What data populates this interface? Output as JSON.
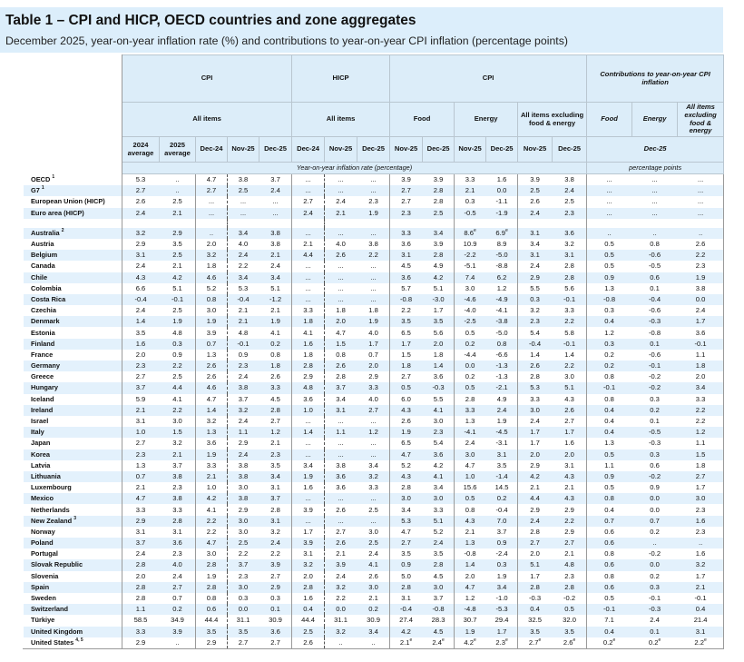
{
  "title": "Table 1 – CPI and HICP, OECD countries and zone aggregates",
  "subtitle": "December 2025, year-on-year inflation rate (%) and contributions to year-on-year CPI inflation (percentage points)",
  "header": {
    "group_cpi": "CPI",
    "group_hicp": "HICP",
    "group_cpi2": "CPI",
    "group_contrib": "Contributions to year-on-year CPI inflation",
    "all_items_cpi": "All items",
    "all_items_hicp": "All items",
    "food": "Food",
    "energy": "Energy",
    "excl": "All items excluding food & energy",
    "c_food": "Food",
    "c_energy": "Energy",
    "c_excl": "All items excluding food & energy",
    "periods": [
      "2024 average",
      "2025 average",
      "Dec-24",
      "Nov-25",
      "Dec-25",
      "Dec-24",
      "Nov-25",
      "Dec-25",
      "Nov-25",
      "Dec-25",
      "Nov-25",
      "Dec-25",
      "Nov-25",
      "Dec-25"
    ],
    "contrib_period": "Dec-25",
    "units_rate": "Year-on-year inflation rate (percentage)",
    "units_pp": "percentage points"
  },
  "aggregates": [
    {
      "name": "OECD",
      "note": "1",
      "values": [
        "5.3",
        "..",
        "4.7",
        "3.8",
        "3.7",
        "...",
        "...",
        "...",
        "3.9",
        "3.9",
        "3.3",
        "1.6",
        "3.9",
        "3.8",
        "...",
        "...",
        "..."
      ]
    },
    {
      "name": "G7",
      "note": "1",
      "values": [
        "2.7",
        "..",
        "2.7",
        "2.5",
        "2.4",
        "...",
        "...",
        "...",
        "2.7",
        "2.8",
        "2.1",
        "0.0",
        "2.5",
        "2.4",
        "...",
        "...",
        "..."
      ]
    },
    {
      "name": "European Union (HICP)",
      "note": "",
      "values": [
        "2.6",
        "2.5",
        "...",
        "...",
        "...",
        "2.7",
        "2.4",
        "2.3",
        "2.7",
        "2.8",
        "0.3",
        "-1.1",
        "2.6",
        "2.5",
        "...",
        "...",
        "..."
      ]
    },
    {
      "name": "Euro area (HICP)",
      "note": "",
      "values": [
        "2.4",
        "2.1",
        "...",
        "...",
        "...",
        "2.4",
        "2.1",
        "1.9",
        "2.3",
        "2.5",
        "-0.5",
        "-1.9",
        "2.4",
        "2.3",
        "...",
        "...",
        "..."
      ]
    }
  ],
  "countries": [
    {
      "name": "Australia",
      "note": "2",
      "values": [
        "3.2",
        "2.9",
        "..",
        "3.4",
        "3.8",
        "...",
        "...",
        "...",
        "3.3",
        "3.4",
        {
          "v": "8.6",
          "sup": "e"
        },
        {
          "v": "6.9",
          "sup": "e"
        },
        "3.1",
        "3.6",
        "..",
        "..",
        ".."
      ]
    },
    {
      "name": "Austria",
      "note": "",
      "values": [
        "2.9",
        "3.5",
        "2.0",
        "4.0",
        "3.8",
        "2.1",
        "4.0",
        "3.8",
        "3.6",
        "3.9",
        "10.9",
        "8.9",
        "3.4",
        "3.2",
        "0.5",
        "0.8",
        "2.6"
      ]
    },
    {
      "name": "Belgium",
      "note": "",
      "values": [
        "3.1",
        "2.5",
        "3.2",
        "2.4",
        "2.1",
        "4.4",
        "2.6",
        "2.2",
        "3.1",
        "2.8",
        "-2.2",
        "-5.0",
        "3.1",
        "3.1",
        "0.5",
        "-0.6",
        "2.2"
      ]
    },
    {
      "name": "Canada",
      "note": "",
      "values": [
        "2.4",
        "2.1",
        "1.8",
        "2.2",
        "2.4",
        "...",
        "...",
        "...",
        "4.5",
        "4.9",
        "-5.1",
        "-8.8",
        "2.4",
        "2.8",
        "0.5",
        "-0.5",
        "2.3"
      ]
    },
    {
      "name": "Chile",
      "note": "",
      "values": [
        "4.3",
        "4.2",
        "4.6",
        "3.4",
        "3.4",
        "...",
        "...",
        "...",
        "3.6",
        "4.2",
        "7.4",
        "6.2",
        "2.9",
        "2.8",
        "0.9",
        "0.6",
        "1.9"
      ]
    },
    {
      "name": "Colombia",
      "note": "",
      "values": [
        "6.6",
        "5.1",
        "5.2",
        "5.3",
        "5.1",
        "...",
        "...",
        "...",
        "5.7",
        "5.1",
        "3.0",
        "1.2",
        "5.5",
        "5.6",
        "1.3",
        "0.1",
        "3.8"
      ]
    },
    {
      "name": "Costa Rica",
      "note": "",
      "values": [
        "-0.4",
        "-0.1",
        "0.8",
        "-0.4",
        "-1.2",
        "...",
        "...",
        "...",
        "-0.8",
        "-3.0",
        "-4.6",
        "-4.9",
        "0.3",
        "-0.1",
        "-0.8",
        "-0.4",
        "0.0"
      ]
    },
    {
      "name": "Czechia",
      "note": "",
      "values": [
        "2.4",
        "2.5",
        "3.0",
        "2.1",
        "2.1",
        "3.3",
        "1.8",
        "1.8",
        "2.2",
        "1.7",
        "-4.0",
        "-4.1",
        "3.2",
        "3.3",
        "0.3",
        "-0.6",
        "2.4"
      ]
    },
    {
      "name": "Denmark",
      "note": "",
      "values": [
        "1.4",
        "1.9",
        "1.9",
        "2.1",
        "1.9",
        "1.8",
        "2.0",
        "1.9",
        "3.5",
        "3.5",
        "-2.5",
        "-3.8",
        "2.3",
        "2.2",
        "0.4",
        "-0.3",
        "1.7"
      ]
    },
    {
      "name": "Estonia",
      "note": "",
      "values": [
        "3.5",
        "4.8",
        "3.9",
        "4.8",
        "4.1",
        "4.1",
        "4.7",
        "4.0",
        "6.5",
        "5.6",
        "0.5",
        "-5.0",
        "5.4",
        "5.8",
        "1.2",
        "-0.8",
        "3.6"
      ]
    },
    {
      "name": "Finland",
      "note": "",
      "values": [
        "1.6",
        "0.3",
        "0.7",
        "-0.1",
        "0.2",
        "1.6",
        "1.5",
        "1.7",
        "1.7",
        "2.0",
        "0.2",
        "0.8",
        "-0.4",
        "-0.1",
        "0.3",
        "0.1",
        "-0.1"
      ]
    },
    {
      "name": "France",
      "note": "",
      "values": [
        "2.0",
        "0.9",
        "1.3",
        "0.9",
        "0.8",
        "1.8",
        "0.8",
        "0.7",
        "1.5",
        "1.8",
        "-4.4",
        "-6.6",
        "1.4",
        "1.4",
        "0.2",
        "-0.6",
        "1.1"
      ]
    },
    {
      "name": "Germany",
      "note": "",
      "values": [
        "2.3",
        "2.2",
        "2.6",
        "2.3",
        "1.8",
        "2.8",
        "2.6",
        "2.0",
        "1.8",
        "1.4",
        "0.0",
        "-1.3",
        "2.6",
        "2.2",
        "0.2",
        "-0.1",
        "1.8"
      ]
    },
    {
      "name": "Greece",
      "note": "",
      "values": [
        "2.7",
        "2.5",
        "2.6",
        "2.4",
        "2.6",
        "2.9",
        "2.8",
        "2.9",
        "2.7",
        "3.6",
        "0.2",
        "-1.3",
        "2.8",
        "3.0",
        "0.8",
        "-0.2",
        "2.0"
      ]
    },
    {
      "name": "Hungary",
      "note": "",
      "values": [
        "3.7",
        "4.4",
        "4.6",
        "3.8",
        "3.3",
        "4.8",
        "3.7",
        "3.3",
        "0.5",
        "-0.3",
        "0.5",
        "-2.1",
        "5.3",
        "5.1",
        "-0.1",
        "-0.2",
        "3.4"
      ]
    },
    {
      "name": "Iceland",
      "note": "",
      "values": [
        "5.9",
        "4.1",
        "4.7",
        "3.7",
        "4.5",
        "3.6",
        "3.4",
        "4.0",
        "6.0",
        "5.5",
        "2.8",
        "4.9",
        "3.3",
        "4.3",
        "0.8",
        "0.3",
        "3.3"
      ]
    },
    {
      "name": "Ireland",
      "note": "",
      "values": [
        "2.1",
        "2.2",
        "1.4",
        "3.2",
        "2.8",
        "1.0",
        "3.1",
        "2.7",
        "4.3",
        "4.1",
        "3.3",
        "2.4",
        "3.0",
        "2.6",
        "0.4",
        "0.2",
        "2.2"
      ]
    },
    {
      "name": "Israel",
      "note": "",
      "values": [
        "3.1",
        "3.0",
        "3.2",
        "2.4",
        "2.7",
        "...",
        "...",
        "...",
        "2.6",
        "3.0",
        "1.3",
        "1.9",
        "2.4",
        "2.7",
        "0.4",
        "0.1",
        "2.2"
      ]
    },
    {
      "name": "Italy",
      "note": "",
      "values": [
        "1.0",
        "1.5",
        "1.3",
        "1.1",
        "1.2",
        "1.4",
        "1.1",
        "1.2",
        "1.9",
        "2.3",
        "-4.1",
        "-4.5",
        "1.7",
        "1.7",
        "0.4",
        "-0.5",
        "1.2"
      ]
    },
    {
      "name": "Japan",
      "note": "",
      "values": [
        "2.7",
        "3.2",
        "3.6",
        "2.9",
        "2.1",
        "...",
        "...",
        "...",
        "6.5",
        "5.4",
        "2.4",
        "-3.1",
        "1.7",
        "1.6",
        "1.3",
        "-0.3",
        "1.1"
      ]
    },
    {
      "name": "Korea",
      "note": "",
      "values": [
        "2.3",
        "2.1",
        "1.9",
        "2.4",
        "2.3",
        "...",
        "...",
        "...",
        "4.7",
        "3.6",
        "3.0",
        "3.1",
        "2.0",
        "2.0",
        "0.5",
        "0.3",
        "1.5"
      ]
    },
    {
      "name": "Latvia",
      "note": "",
      "values": [
        "1.3",
        "3.7",
        "3.3",
        "3.8",
        "3.5",
        "3.4",
        "3.8",
        "3.4",
        "5.2",
        "4.2",
        "4.7",
        "3.5",
        "2.9",
        "3.1",
        "1.1",
        "0.6",
        "1.8"
      ]
    },
    {
      "name": "Lithuania",
      "note": "",
      "values": [
        "0.7",
        "3.8",
        "2.1",
        "3.8",
        "3.4",
        "1.9",
        "3.6",
        "3.2",
        "4.3",
        "4.1",
        "1.0",
        "-1.4",
        "4.2",
        "4.3",
        "0.9",
        "-0.2",
        "2.7"
      ]
    },
    {
      "name": "Luxembourg",
      "note": "",
      "values": [
        "2.1",
        "2.3",
        "1.0",
        "3.0",
        "3.1",
        "1.6",
        "3.6",
        "3.3",
        "2.8",
        "3.4",
        "15.6",
        "14.5",
        "2.1",
        "2.1",
        "0.5",
        "0.9",
        "1.7"
      ]
    },
    {
      "name": "Mexico",
      "note": "",
      "values": [
        "4.7",
        "3.8",
        "4.2",
        "3.8",
        "3.7",
        "...",
        "...",
        "...",
        "3.0",
        "3.0",
        "0.5",
        "0.2",
        "4.4",
        "4.3",
        "0.8",
        "0.0",
        "3.0"
      ]
    },
    {
      "name": "Netherlands",
      "note": "",
      "values": [
        "3.3",
        "3.3",
        "4.1",
        "2.9",
        "2.8",
        "3.9",
        "2.6",
        "2.5",
        "3.4",
        "3.3",
        "0.8",
        "-0.4",
        "2.9",
        "2.9",
        "0.4",
        "0.0",
        "2.3"
      ]
    },
    {
      "name": "New Zealand",
      "note": "3",
      "values": [
        "2.9",
        "2.8",
        "2.2",
        "3.0",
        "3.1",
        "...",
        "...",
        "...",
        "5.3",
        "5.1",
        "4.3",
        "7.0",
        "2.4",
        "2.2",
        "0.7",
        "0.7",
        "1.6"
      ]
    },
    {
      "name": "Norway",
      "note": "",
      "values": [
        "3.1",
        "3.1",
        "2.2",
        "3.0",
        "3.2",
        "1.7",
        "2.7",
        "3.0",
        "4.7",
        "5.2",
        "2.1",
        "3.7",
        "2.8",
        "2.9",
        "0.6",
        "0.2",
        "2.3"
      ]
    },
    {
      "name": "Poland",
      "note": "",
      "values": [
        "3.7",
        "3.6",
        "4.7",
        "2.5",
        "2.4",
        "3.9",
        "2.6",
        "2.5",
        "2.7",
        "2.4",
        "1.3",
        "0.9",
        "2.7",
        "2.7",
        "0.6",
        "..",
        ".."
      ]
    },
    {
      "name": "Portugal",
      "note": "",
      "values": [
        "2.4",
        "2.3",
        "3.0",
        "2.2",
        "2.2",
        "3.1",
        "2.1",
        "2.4",
        "3.5",
        "3.5",
        "-0.8",
        "-2.4",
        "2.0",
        "2.1",
        "0.8",
        "-0.2",
        "1.6"
      ]
    },
    {
      "name": "Slovak Republic",
      "note": "",
      "values": [
        "2.8",
        "4.0",
        "2.8",
        "3.7",
        "3.9",
        "3.2",
        "3.9",
        "4.1",
        "0.9",
        "2.8",
        "1.4",
        "0.3",
        "5.1",
        "4.8",
        "0.6",
        "0.0",
        "3.2"
      ]
    },
    {
      "name": "Slovenia",
      "note": "",
      "values": [
        "2.0",
        "2.4",
        "1.9",
        "2.3",
        "2.7",
        "2.0",
        "2.4",
        "2.6",
        "5.0",
        "4.5",
        "2.0",
        "1.9",
        "1.7",
        "2.3",
        "0.8",
        "0.2",
        "1.7"
      ]
    },
    {
      "name": "Spain",
      "note": "",
      "values": [
        "2.8",
        "2.7",
        "2.8",
        "3.0",
        "2.9",
        "2.8",
        "3.2",
        "3.0",
        "2.8",
        "3.0",
        "4.7",
        "3.4",
        "2.8",
        "2.8",
        "0.6",
        "0.3",
        "2.1"
      ]
    },
    {
      "name": "Sweden",
      "note": "",
      "values": [
        "2.8",
        "0.7",
        "0.8",
        "0.3",
        "0.3",
        "1.6",
        "2.2",
        "2.1",
        "3.1",
        "3.7",
        "1.2",
        "-1.0",
        "-0.3",
        "-0.2",
        "0.5",
        "-0.1",
        "-0.1"
      ]
    },
    {
      "name": "Switzerland",
      "note": "",
      "values": [
        "1.1",
        "0.2",
        "0.6",
        "0.0",
        "0.1",
        "0.4",
        "0.0",
        "0.2",
        "-0.4",
        "-0.8",
        "-4.8",
        "-5.3",
        "0.4",
        "0.5",
        "-0.1",
        "-0.3",
        "0.4"
      ]
    },
    {
      "name": "Türkiye",
      "note": "",
      "values": [
        "58.5",
        "34.9",
        "44.4",
        "31.1",
        "30.9",
        "44.4",
        "31.1",
        "30.9",
        "27.4",
        "28.3",
        "30.7",
        "29.4",
        "32.5",
        "32.0",
        "7.1",
        "2.4",
        "21.4"
      ]
    },
    {
      "name": "United Kingdom",
      "note": "",
      "values": [
        "3.3",
        "3.9",
        "3.5",
        "3.5",
        "3.6",
        "2.5",
        "3.2",
        "3.4",
        "4.2",
        "4.5",
        "1.9",
        "1.7",
        "3.5",
        "3.5",
        "0.4",
        "0.1",
        "3.1"
      ]
    },
    {
      "name": "United States",
      "note": "4, 5",
      "values": [
        "2.9",
        "..",
        "2.9",
        "2.7",
        "2.7",
        "2.6",
        "..",
        "..",
        {
          "v": "2.1",
          "sup": "e"
        },
        {
          "v": "2.4",
          "sup": "e"
        },
        {
          "v": "4.2",
          "sup": "e"
        },
        {
          "v": "2.3",
          "sup": "e"
        },
        {
          "v": "2.7",
          "sup": "e"
        },
        {
          "v": "2.6",
          "sup": "e"
        },
        {
          "v": "0.2",
          "sup": "e"
        },
        {
          "v": "0.2",
          "sup": "e"
        },
        {
          "v": "2.2",
          "sup": "e"
        }
      ]
    }
  ],
  "colors": {
    "header_bg": "#dcedf9",
    "row_shade": "#e3f1fc",
    "title_bg": "#dceefb"
  }
}
